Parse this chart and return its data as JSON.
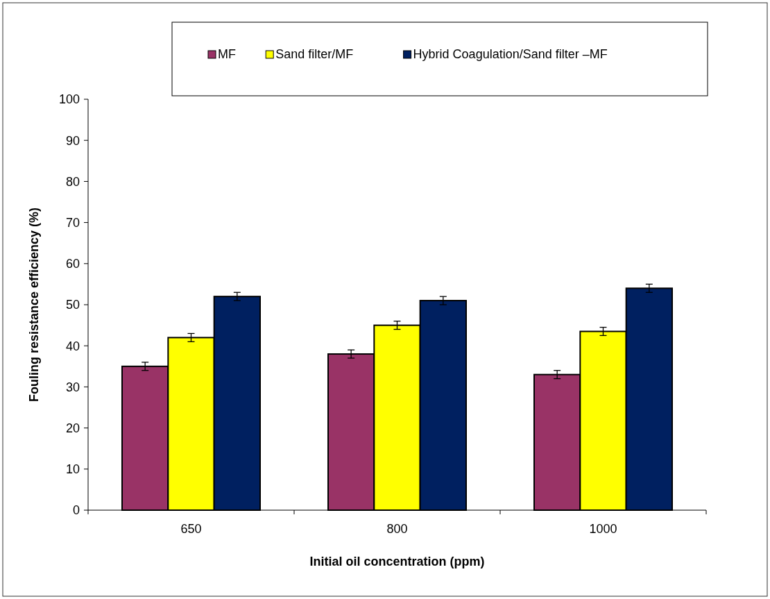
{
  "chart_data": {
    "type": "bar",
    "xlabel": "Initial oil concentration (ppm)",
    "ylabel": "Fouling resistance efficiency (%)",
    "categories": [
      "650",
      "800",
      "1000"
    ],
    "series": [
      {
        "name": "MF",
        "color": "#993366",
        "values": [
          35,
          38,
          33
        ],
        "errors": [
          1,
          1,
          1
        ]
      },
      {
        "name": "Sand filter/MF",
        "color": "#ffff00",
        "values": [
          42,
          45,
          43.5
        ],
        "errors": [
          1,
          1,
          1
        ]
      },
      {
        "name": "Hybrid Coagulation/Sand filter –MF",
        "color": "#002060",
        "values": [
          52,
          51,
          54
        ],
        "errors": [
          1,
          1,
          1
        ]
      }
    ],
    "ylim": [
      0,
      100
    ],
    "yticks": [
      0,
      10,
      20,
      30,
      40,
      50,
      60,
      70,
      80,
      90,
      100
    ],
    "legend": "top",
    "grid": false
  }
}
